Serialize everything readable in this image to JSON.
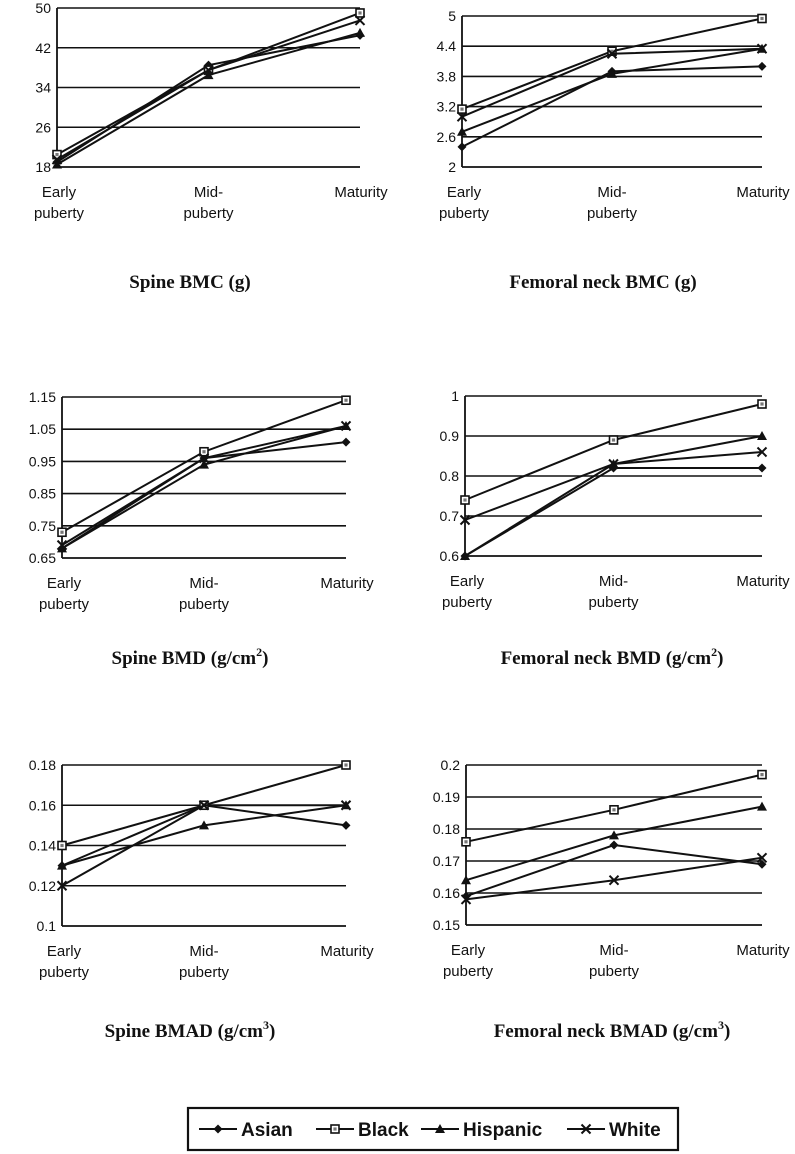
{
  "legend": [
    {
      "name": "Asian",
      "marker": "diamond"
    },
    {
      "name": "Black",
      "marker": "square"
    },
    {
      "name": "Hispanic",
      "marker": "triangle"
    },
    {
      "name": "White",
      "marker": "x"
    }
  ],
  "chart_data": [
    {
      "type": "line",
      "title": "Spine BMC (g)",
      "title_main": "Spine BMC (g)",
      "title_sup": "",
      "title_end": "",
      "categories": [
        [
          "Early",
          "puberty"
        ],
        [
          "Mid-",
          "puberty"
        ],
        [
          "Maturity"
        ]
      ],
      "yticks": [
        18,
        26,
        34,
        42,
        50
      ],
      "ytick_labels": [
        "18",
        "26",
        "34",
        "42",
        "50"
      ],
      "ylim": [
        18,
        50
      ],
      "grid": true,
      "series": [
        {
          "name": "Asian",
          "values": [
            19,
            38.5,
            44.5
          ]
        },
        {
          "name": "Black",
          "values": [
            20.5,
            37.5,
            49
          ]
        },
        {
          "name": "Hispanic",
          "values": [
            18.5,
            36.5,
            45
          ]
        },
        {
          "name": "White",
          "values": [
            19.5,
            37.5,
            47.5
          ]
        }
      ]
    },
    {
      "type": "line",
      "title": "Femoral neck BMC (g)",
      "title_main": "Femoral neck BMC (g)",
      "title_sup": "",
      "title_end": "",
      "categories": [
        [
          "Early",
          "puberty"
        ],
        [
          "Mid-",
          "puberty"
        ],
        [
          "Maturity"
        ]
      ],
      "yticks": [
        2,
        2.6,
        3.2,
        3.8,
        4.4,
        5
      ],
      "ytick_labels": [
        "2",
        "2.6",
        "3.2",
        "3.8",
        "4.4",
        "5"
      ],
      "ylim": [
        2,
        5
      ],
      "grid": true,
      "series": [
        {
          "name": "Asian",
          "values": [
            2.4,
            3.9,
            4
          ]
        },
        {
          "name": "Black",
          "values": [
            3.15,
            4.3,
            4.95
          ]
        },
        {
          "name": "Hispanic",
          "values": [
            2.7,
            3.85,
            4.35
          ]
        },
        {
          "name": "White",
          "values": [
            3,
            4.25,
            4.35
          ]
        }
      ]
    },
    {
      "type": "line",
      "title": "Spine BMD (g/cm2)",
      "title_main": "Spine BMD (g/cm",
      "title_sup": "2",
      "title_end": ")",
      "categories": [
        [
          "Early",
          "puberty"
        ],
        [
          "Mid-",
          "puberty"
        ],
        [
          "Maturity"
        ]
      ],
      "yticks": [
        0.65,
        0.75,
        0.85,
        0.95,
        1.05,
        1.15
      ],
      "ytick_labels": [
        "0.65",
        "0.75",
        "0.85",
        "0.95",
        "1.05",
        "1.15"
      ],
      "ylim": [
        0.65,
        1.15
      ],
      "grid": true,
      "series": [
        {
          "name": "Asian",
          "values": [
            0.68,
            0.96,
            1.01
          ]
        },
        {
          "name": "Black",
          "values": [
            0.73,
            0.98,
            1.14
          ]
        },
        {
          "name": "Hispanic",
          "values": [
            0.68,
            0.94,
            1.06
          ]
        },
        {
          "name": "White",
          "values": [
            0.69,
            0.96,
            1.06
          ]
        }
      ]
    },
    {
      "type": "line",
      "title": "Femoral neck BMD (g/cm2)",
      "title_main": "Femoral neck BMD (g/cm",
      "title_sup": "2",
      "title_end": ")",
      "categories": [
        [
          "Early",
          "puberty"
        ],
        [
          "Mid-",
          "puberty"
        ],
        [
          "Maturity"
        ]
      ],
      "yticks": [
        0.6,
        0.7,
        0.8,
        0.9,
        1
      ],
      "ytick_labels": [
        "0.6",
        "0.7",
        "0.8",
        "0.9",
        "1"
      ],
      "ylim": [
        0.6,
        1
      ],
      "grid": true,
      "series": [
        {
          "name": "Asian",
          "values": [
            0.6,
            0.82,
            0.82
          ]
        },
        {
          "name": "Black",
          "values": [
            0.74,
            0.89,
            0.98
          ]
        },
        {
          "name": "Hispanic",
          "values": [
            0.6,
            0.83,
            0.9
          ]
        },
        {
          "name": "White",
          "values": [
            0.69,
            0.83,
            0.86
          ]
        }
      ]
    },
    {
      "type": "line",
      "title": "Spine BMAD (g/cm3)",
      "title_main": "Spine BMAD (g/cm",
      "title_sup": "3",
      "title_end": ")",
      "categories": [
        [
          "Early",
          "puberty"
        ],
        [
          "Mid-",
          "puberty"
        ],
        [
          "Maturity"
        ]
      ],
      "yticks": [
        0.1,
        0.12,
        0.14,
        0.16,
        0.18
      ],
      "ytick_labels": [
        "0.1",
        "0.12",
        "0.14",
        "0.16",
        "0.18"
      ],
      "ylim": [
        0.1,
        0.18
      ],
      "grid": true,
      "series": [
        {
          "name": "Asian",
          "values": [
            0.13,
            0.16,
            0.15
          ]
        },
        {
          "name": "Black",
          "values": [
            0.14,
            0.16,
            0.18
          ]
        },
        {
          "name": "Hispanic",
          "values": [
            0.13,
            0.15,
            0.16
          ]
        },
        {
          "name": "White",
          "values": [
            0.12,
            0.16,
            0.16
          ]
        }
      ]
    },
    {
      "type": "line",
      "title": "Femoral neck BMAD (g/cm3)",
      "title_main": "Femoral neck BMAD (g/cm",
      "title_sup": "3",
      "title_end": ")",
      "categories": [
        [
          "Early",
          "puberty"
        ],
        [
          "Mid-",
          "puberty"
        ],
        [
          "Maturity"
        ]
      ],
      "yticks": [
        0.15,
        0.16,
        0.17,
        0.18,
        0.19,
        0.2
      ],
      "ytick_labels": [
        "0.15",
        "0.16",
        "0.17",
        "0.18",
        "0.19",
        "0.2"
      ],
      "ylim": [
        0.15,
        0.2
      ],
      "grid": true,
      "series": [
        {
          "name": "Asian",
          "values": [
            0.159,
            0.175,
            0.169
          ]
        },
        {
          "name": "Black",
          "values": [
            0.176,
            0.186,
            0.197
          ]
        },
        {
          "name": "Hispanic",
          "values": [
            0.164,
            0.178,
            0.187
          ]
        },
        {
          "name": "White",
          "values": [
            0.158,
            0.164,
            0.171
          ]
        }
      ]
    }
  ]
}
